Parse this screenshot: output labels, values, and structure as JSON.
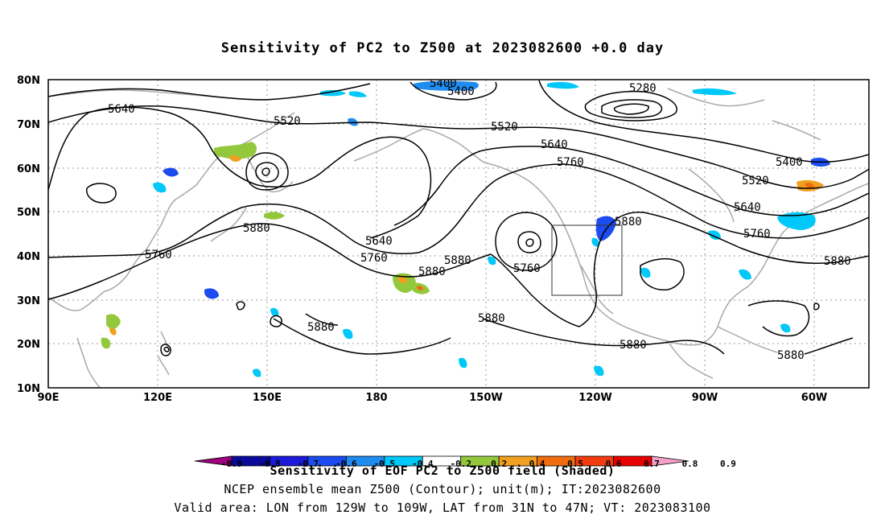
{
  "title": "Sensitivity of PC2 to Z500 at 2023082600 +0.0 day",
  "lat_labels": [
    "80N",
    "70N",
    "60N",
    "50N",
    "40N",
    "30N",
    "20N",
    "10N"
  ],
  "lon_labels": [
    "90E",
    "120E",
    "150E",
    "180",
    "150W",
    "120W",
    "90W",
    "60W"
  ],
  "contour_labels": [
    "5400",
    "5400",
    "5280",
    "5640",
    "5520",
    "5520",
    "5640",
    "5760",
    "5400",
    "5520",
    "5640",
    "5760",
    "5880",
    "5880",
    "5640",
    "5760",
    "5880",
    "5880",
    "5760",
    "5880",
    "5880",
    "5880",
    "5880",
    "5760",
    "5880"
  ],
  "valid_area_box": {
    "lon_min": -129,
    "lon_max": -109,
    "lat_min": 31,
    "lat_max": 47
  },
  "colorbar": {
    "colors": [
      "#a0007f",
      "#0a0a9a",
      "#1a1ad8",
      "#1c4cf0",
      "#1e8cf0",
      "#00c8f8",
      "#ffffff",
      "#94c83c",
      "#f0a020",
      "#f06c10",
      "#f03c10",
      "#e80000",
      "#f4a0c8"
    ],
    "tick_labels": [
      "-0.9",
      "-0.8",
      "-0.7",
      "-0.6",
      "-0.5",
      "-0.4",
      "-0.2",
      "0.2",
      "0.4",
      "0.5",
      "0.6",
      "0.7",
      "0.8",
      "0.9"
    ]
  },
  "caption": {
    "line1": "Sensitivity of EOF PC2 to Z500 field (Shaded)",
    "line2": "NCEP ensemble mean Z500 (Contour); unit(m); IT:2023082600",
    "line3": "Valid area: LON from 129W to 109W, LAT from 31N to 47N; VT: 2023083100"
  }
}
